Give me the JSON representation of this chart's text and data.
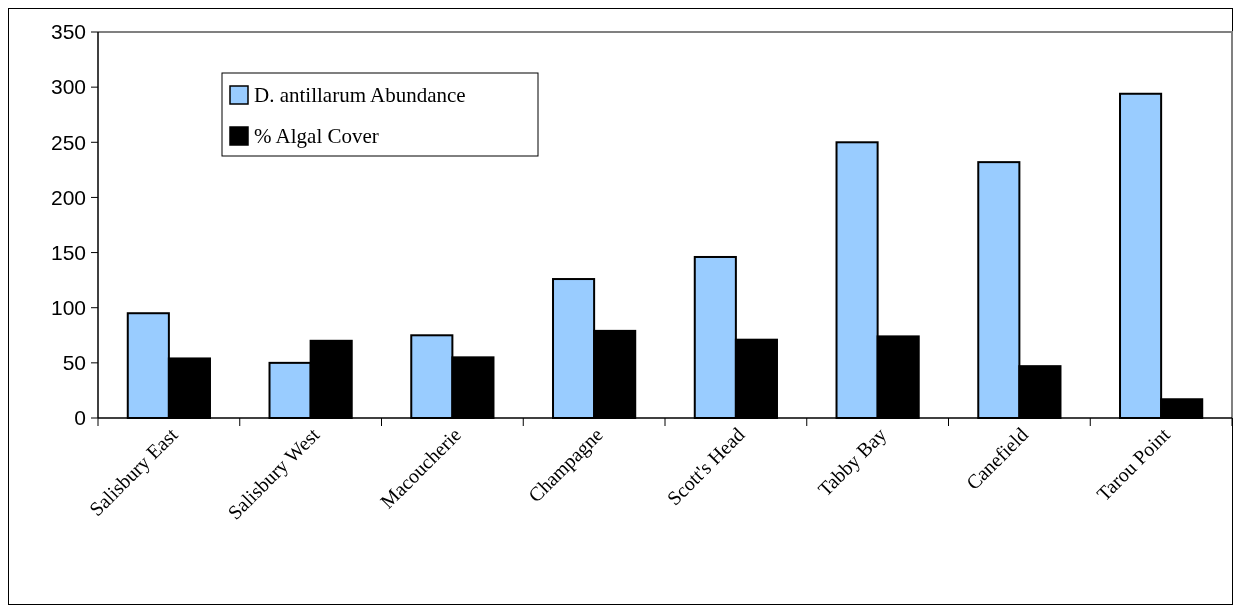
{
  "chart_data": {
    "type": "bar",
    "categories": [
      "Salisbury East",
      "Salisbury West",
      "Macoucherie",
      "Champagne",
      "Scott's Head",
      "Tabby Bay",
      "Canefield",
      "Tarou Point"
    ],
    "series": [
      {
        "name": "D. antillarum Abundance",
        "color": "#99ccff",
        "values": [
          95,
          50,
          75,
          126,
          146,
          250,
          232,
          294
        ]
      },
      {
        "name": "% Algal Cover",
        "color": "#000000",
        "values": [
          54,
          70,
          55,
          79,
          71,
          74,
          47,
          17
        ]
      }
    ],
    "ylim": [
      0,
      350
    ],
    "yticks": [
      0,
      50,
      100,
      150,
      200,
      250,
      300,
      350
    ],
    "legend": "top left"
  }
}
